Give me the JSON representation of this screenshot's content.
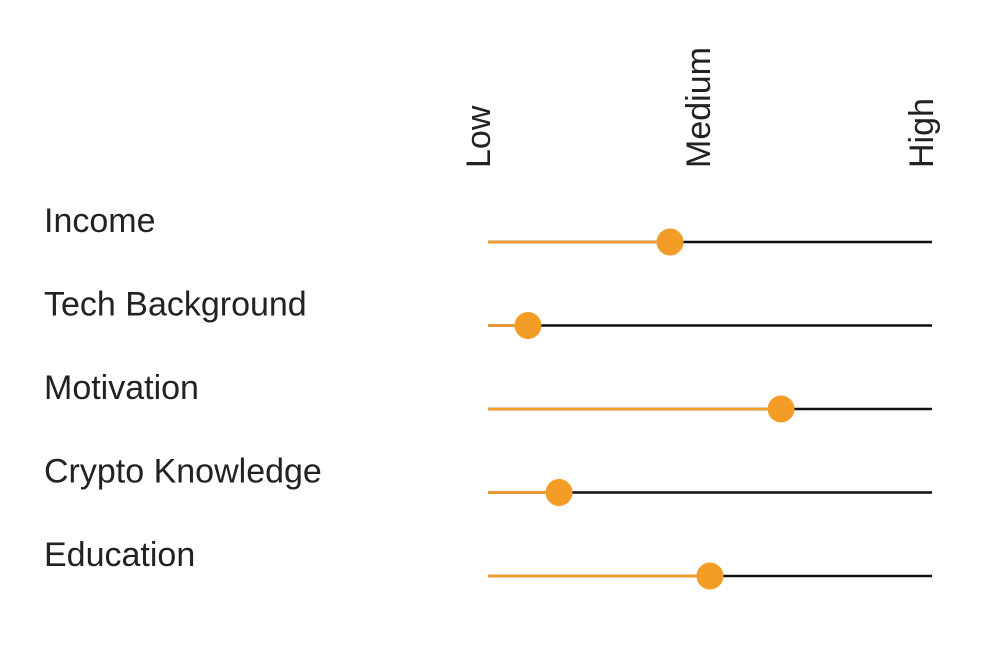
{
  "chart_data": {
    "type": "line",
    "scale_labels": [
      "Low",
      "Medium",
      "High"
    ],
    "categories": [
      "Income",
      "Tech Background",
      "Motivation",
      "Crypto Knowledge",
      "Education"
    ],
    "values": [
      0.41,
      0.09,
      0.66,
      0.16,
      0.5
    ],
    "xlim": [
      0,
      1
    ],
    "title": "",
    "xlabel": "",
    "ylabel": "",
    "grid": false,
    "legend": "none",
    "colors": {
      "filled": "#F39C26",
      "track": "#111111",
      "marker": "#F39C26",
      "text": "#222222"
    }
  }
}
